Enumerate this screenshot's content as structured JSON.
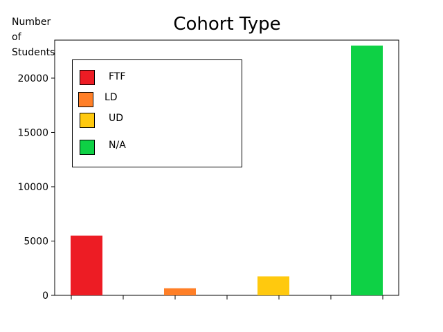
{
  "chart_data": {
    "type": "bar",
    "title": "Cohort Type",
    "ylabel": "Number\nof\nStudents",
    "xlabel": "",
    "categories": [
      "FTF",
      "LD",
      "UD",
      "N/A"
    ],
    "values": [
      5500,
      650,
      1750,
      23000
    ],
    "colors": [
      "#ed1c24",
      "#ff7f27",
      "#ffc90e",
      "#0ed145"
    ],
    "ylim": [
      0,
      23500
    ],
    "yticks": [
      0,
      5000,
      10000,
      15000,
      20000
    ],
    "grid": false,
    "legend": {
      "placement": "top-left",
      "entries": [
        "FTF",
        "LD",
        "UD",
        "N/A"
      ]
    }
  },
  "ylabel_lines": [
    "Number",
    "of",
    "Students"
  ]
}
